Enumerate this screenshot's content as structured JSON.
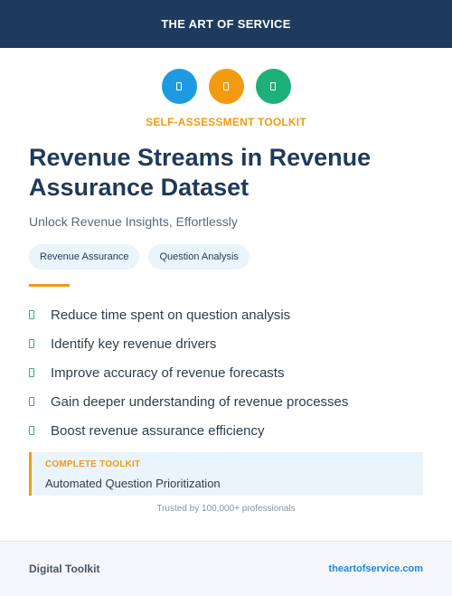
{
  "header": {
    "brand": "THE ART OF SERVICE"
  },
  "icons": [
    {
      "name": "blue-icon",
      "color": "#1e9be0"
    },
    {
      "name": "orange-icon",
      "color": "#f29b11"
    },
    {
      "name": "green-icon",
      "color": "#1db07a"
    }
  ],
  "eyebrow": "SELF-ASSESSMENT TOOLKIT",
  "title": "Revenue Streams in Revenue Assurance Dataset",
  "subtitle": "Unlock Revenue Insights, Effortlessly",
  "tags": [
    "Revenue Assurance",
    "Question Analysis"
  ],
  "bullets": [
    "Reduce time spent on question analysis",
    "Identify key revenue drivers",
    "Improve accuracy of revenue forecasts",
    "Gain deeper understanding of revenue processes",
    "Boost revenue assurance efficiency"
  ],
  "callout": {
    "label": "COMPLETE TOOLKIT",
    "value": "Automated Question Prioritization"
  },
  "trusted": "Trusted by 100,000+ professionals",
  "footer": {
    "left": "Digital Toolkit",
    "right": "theartofservice.com"
  },
  "colors": {
    "navy": "#1e3b5e",
    "accent": "#f29b11",
    "check": "#2bb673",
    "link": "#1e88d6"
  }
}
